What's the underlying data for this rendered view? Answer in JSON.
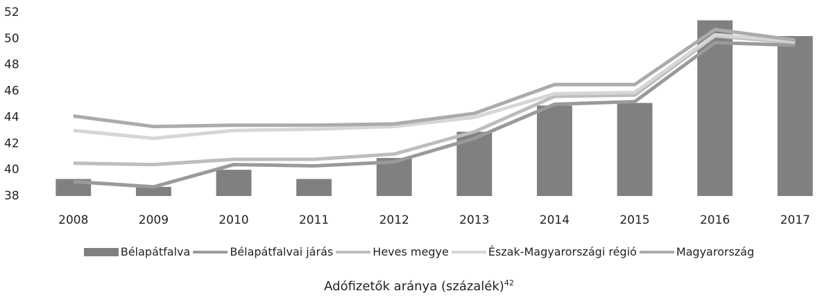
{
  "chart_data": {
    "type": "bar-line",
    "title": "Adófizetők aránya (százalék)",
    "footnote": "42",
    "categories": [
      "2008",
      "2009",
      "2010",
      "2011",
      "2012",
      "2013",
      "2014",
      "2015",
      "2016",
      "2017"
    ],
    "ylim": [
      38,
      52
    ],
    "yticks": [
      38,
      40,
      42,
      44,
      46,
      48,
      50,
      52
    ],
    "series": [
      {
        "name": "Bélapátfalva",
        "type": "bar",
        "color": "#808080",
        "values": [
          39.3,
          38.7,
          40.0,
          39.3,
          40.9,
          42.9,
          44.9,
          45.1,
          51.4,
          50.2
        ]
      },
      {
        "name": "Bélapátfalvai járás",
        "type": "line",
        "color": "#9a9a9a",
        "values": [
          39.1,
          38.7,
          40.4,
          40.3,
          40.6,
          42.4,
          45.0,
          45.2,
          49.7,
          49.5
        ]
      },
      {
        "name": "Heves megye",
        "type": "line",
        "color": "#bdbdbd",
        "values": [
          40.5,
          40.4,
          40.8,
          40.8,
          41.2,
          42.9,
          45.6,
          45.7,
          50.2,
          49.7
        ]
      },
      {
        "name": "Észak-Magyarországi régió",
        "type": "line",
        "color": "#d6d6d6",
        "values": [
          43.0,
          42.4,
          43.0,
          43.1,
          43.3,
          44.0,
          45.8,
          45.9,
          50.3,
          49.8
        ]
      },
      {
        "name": "Magyarország",
        "type": "line",
        "color": "#ababab",
        "values": [
          44.1,
          43.3,
          43.4,
          43.4,
          43.5,
          44.3,
          46.5,
          46.5,
          50.7,
          49.9
        ]
      }
    ]
  }
}
